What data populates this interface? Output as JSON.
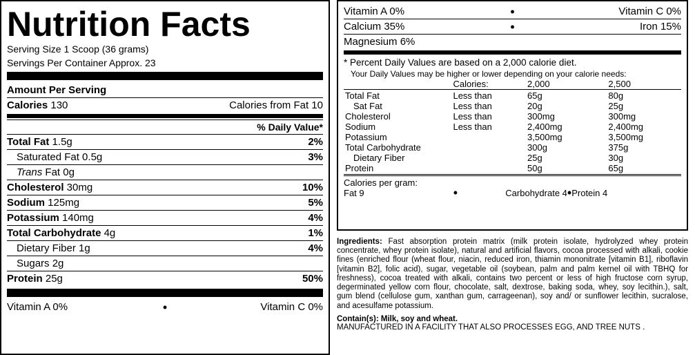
{
  "left": {
    "title": "Nutrition Facts",
    "serving_size": "Serving Size 1 Scoop (36 grams)",
    "servings_per": "Servings Per Container Approx. 23",
    "amount_per": "Amount Per Serving",
    "calories_label": "Calories",
    "calories_value": "130",
    "calories_fat": "Calories from Fat 10",
    "dv_header": "% Daily Value*",
    "nutrients": [
      {
        "label": "Total Fat",
        "amt": "1.5g",
        "dv": "2%",
        "bold": true
      },
      {
        "label": "Saturated Fat",
        "amt": "0.5g",
        "dv": "3%",
        "indent": true
      },
      {
        "label": "Trans Fat",
        "amt": "0g",
        "dv": "",
        "indent": true,
        "italic_prefix": "Trans",
        "suffix": " Fat 0g"
      },
      {
        "label": "Cholesterol",
        "amt": "30mg",
        "dv": "10%",
        "bold": true
      },
      {
        "label": "Sodium",
        "amt": "125mg",
        "dv": "5%",
        "bold": true
      },
      {
        "label": "Potassium",
        "amt": "140mg",
        "dv": "4%",
        "bold": true
      },
      {
        "label": "Total Carbohydrate",
        "amt": "4g",
        "dv": "1%",
        "bold": true
      },
      {
        "label": "Dietary Fiber",
        "amt": "1g",
        "dv": "4%",
        "indent": true
      },
      {
        "label": "Sugars",
        "amt": "2g",
        "dv": "",
        "indent": true
      },
      {
        "label": "Protein",
        "amt": "25g",
        "dv": "50%",
        "bold": true
      }
    ],
    "vit_a": "Vitamin A 0%",
    "vit_c": "Vitamin C 0%"
  },
  "right": {
    "vit_a": "Vitamin A 0%",
    "vit_c": "Vitamin C 0%",
    "calcium": "Calcium 35%",
    "iron": "Iron 15%",
    "magnesium": "Magnesium 6%",
    "footnote": "* Percent Daily Values are based on a 2,000 calorie diet.",
    "footnote_sub": "Your Daily Values may be higher or lower depending on your calorie needs:",
    "ref_header": {
      "c2": "Calories:",
      "c3": "2,000",
      "c4": "2,500"
    },
    "ref_rows": [
      {
        "n": "Total Fat",
        "q": "Less than",
        "a": "65g",
        "b": "80g"
      },
      {
        "n": "Sat Fat",
        "q": "Less than",
        "a": "20g",
        "b": "25g",
        "indent": true
      },
      {
        "n": "Cholesterol",
        "q": "Less than",
        "a": "300mg",
        "b": "300mg"
      },
      {
        "n": "Sodium",
        "q": "Less than",
        "a": "2,400mg",
        "b": "2,400mg"
      },
      {
        "n": "Potassium",
        "q": "",
        "a": "3,500mg",
        "b": "3,500mg"
      },
      {
        "n": "Total Carbohydrate",
        "q": "",
        "a": "300g",
        "b": "375g"
      },
      {
        "n": "Dietary Fiber",
        "q": "",
        "a": "25g",
        "b": "30g",
        "indent": true
      },
      {
        "n": "Protein",
        "q": "",
        "a": "50g",
        "b": "65g"
      }
    ],
    "calper_label": "Calories per gram:",
    "calper_fat": "Fat 9",
    "calper_carb": "Carbohydrate 4",
    "calper_prot": "Protein 4"
  },
  "ingredients_label": "Ingredients:",
  "ingredients": " Fast absorption protein matrix (milk protein isolate, hydrolyzed whey protein concentrate, whey protein isolate), natural and artificial flavors, cocoa processed with alkali, cookie fines (enriched flour (wheat flour, niacin, reduced iron, thiamin mononitrate [vitamin B1], riboflavin [vitamin B2], folic acid), sugar, vegetable oil (soybean, palm and palm kernel oil with TBHQ for freshness), cocoa treated with alkali, contains two percent or less of high fructose corn syrup, degerminated yellow corn flour, chocolate, salt, dextrose, baking soda, whey, soy lecithin.), salt, gum blend (cellulose gum, xanthan gum, carrageenan), soy and/ or sunflower lecithin, sucralose, and acesulfame potassium.",
  "contains_label": "Contain(s): Milk, soy and wheat.",
  "manufactured": "MANUFACTURED IN A FACILITY THAT ALSO PROCESSES EGG, AND TREE NUTS ."
}
